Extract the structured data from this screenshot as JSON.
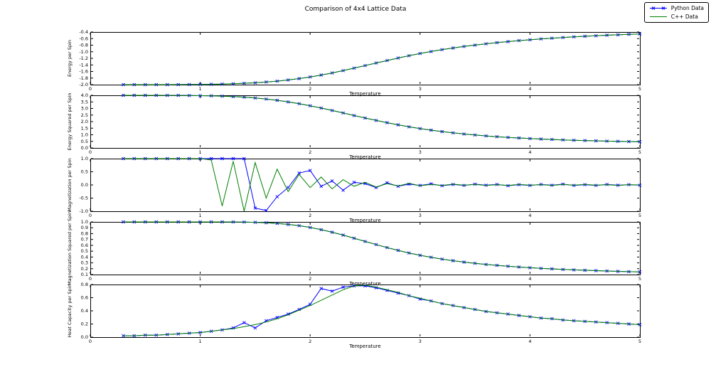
{
  "legend": {
    "position": "top-right",
    "items": [
      {
        "label": "Python Data",
        "color": "#0000ff",
        "marker": "x"
      },
      {
        "label": "C++ Data",
        "color": "#008000",
        "marker": "none"
      }
    ]
  },
  "chart_data": {
    "type": "line",
    "title": "Comparison of 4x4 Lattice Data",
    "xlim": [
      0,
      5
    ],
    "xticks": [
      0,
      1,
      2,
      3,
      4,
      5
    ],
    "xticklabels": [
      "0",
      "1",
      "2",
      "3",
      "4",
      "5"
    ],
    "x": [
      0.3,
      0.4,
      0.5,
      0.6,
      0.7,
      0.8,
      0.9,
      1.0,
      1.1,
      1.2,
      1.3,
      1.4,
      1.5,
      1.6,
      1.7,
      1.8,
      1.9,
      2.0,
      2.1,
      2.2,
      2.3,
      2.4,
      2.5,
      2.6,
      2.7,
      2.8,
      2.9,
      3.0,
      3.1,
      3.2,
      3.3,
      3.4,
      3.5,
      3.6,
      3.7,
      3.8,
      3.9,
      4.0,
      4.1,
      4.2,
      4.3,
      4.4,
      4.5,
      4.6,
      4.7,
      4.8,
      4.9,
      5.0
    ],
    "subplots": [
      {
        "id": "energy",
        "ylabel": "Energy per Spin",
        "xlabel": "Temperature",
        "ylim": [
          -2.0,
          -0.4
        ],
        "yticks": [
          -2.0,
          -1.8,
          -1.6,
          -1.4,
          -1.2,
          -1.0,
          -0.8,
          -0.6,
          -0.4
        ],
        "yticklabels": [
          "-2.0",
          "-1.8",
          "-1.6",
          "-1.4",
          "-1.2",
          "-1.0",
          "-0.8",
          "-0.6",
          "-0.4"
        ],
        "series": [
          {
            "name": "Python Data",
            "color": "#0000ff",
            "marker": "x",
            "values": [
              -2.0,
              -2.0,
              -2.0,
              -1.999,
              -1.999,
              -1.998,
              -1.996,
              -1.993,
              -1.989,
              -1.982,
              -1.973,
              -1.96,
              -1.943,
              -1.921,
              -1.893,
              -1.858,
              -1.816,
              -1.766,
              -1.709,
              -1.645,
              -1.574,
              -1.499,
              -1.421,
              -1.343,
              -1.266,
              -1.191,
              -1.12,
              -1.054,
              -0.993,
              -0.937,
              -0.886,
              -0.839,
              -0.797,
              -0.758,
              -0.723,
              -0.691,
              -0.662,
              -0.635,
              -0.61,
              -0.588,
              -0.567,
              -0.548,
              -0.53,
              -0.514,
              -0.498,
              -0.484,
              -0.471,
              -0.458
            ]
          },
          {
            "name": "C++ Data",
            "color": "#008000",
            "marker": "none",
            "values": [
              -2.0,
              -2.0,
              -2.0,
              -1.999,
              -1.999,
              -1.998,
              -1.996,
              -1.993,
              -1.989,
              -1.982,
              -1.973,
              -1.96,
              -1.943,
              -1.921,
              -1.893,
              -1.858,
              -1.816,
              -1.766,
              -1.709,
              -1.645,
              -1.574,
              -1.499,
              -1.421,
              -1.343,
              -1.266,
              -1.191,
              -1.12,
              -1.054,
              -0.993,
              -0.937,
              -0.886,
              -0.839,
              -0.797,
              -0.758,
              -0.723,
              -0.691,
              -0.662,
              -0.635,
              -0.61,
              -0.588,
              -0.567,
              -0.548,
              -0.53,
              -0.514,
              -0.498,
              -0.484,
              -0.471,
              -0.458
            ]
          }
        ]
      },
      {
        "id": "energy-squared",
        "ylabel": "Energy Squared per Spin",
        "xlabel": "Temperature",
        "ylim": [
          0.0,
          4.0
        ],
        "yticks": [
          0.0,
          0.5,
          1.0,
          1.5,
          2.0,
          2.5,
          3.0,
          3.5,
          4.0
        ],
        "yticklabels": [
          "0.0",
          "0.5",
          "1.0",
          "1.5",
          "2.0",
          "2.5",
          "3.0",
          "3.5",
          "4.0"
        ],
        "series": [
          {
            "name": "Python Data",
            "color": "#0000ff",
            "marker": "x",
            "values": [
              4.0,
              4.0,
              4.0,
              3.998,
              3.996,
              3.992,
              3.985,
              3.975,
              3.96,
              3.936,
              3.903,
              3.857,
              3.795,
              3.716,
              3.619,
              3.5,
              3.362,
              3.205,
              3.033,
              2.849,
              2.657,
              2.464,
              2.274,
              2.091,
              1.917,
              1.755,
              1.607,
              1.472,
              1.35,
              1.241,
              1.144,
              1.058,
              0.982,
              0.915,
              0.855,
              0.802,
              0.755,
              0.713,
              0.676,
              0.643,
              0.613,
              0.586,
              0.562,
              0.54,
              0.52,
              0.502,
              0.486,
              0.471
            ]
          },
          {
            "name": "C++ Data",
            "color": "#008000",
            "marker": "none",
            "values": [
              4.0,
              4.0,
              4.0,
              3.998,
              3.996,
              3.992,
              3.985,
              3.975,
              3.96,
              3.936,
              3.903,
              3.857,
              3.795,
              3.716,
              3.619,
              3.5,
              3.362,
              3.205,
              3.033,
              2.849,
              2.657,
              2.464,
              2.274,
              2.091,
              1.917,
              1.755,
              1.607,
              1.472,
              1.35,
              1.241,
              1.144,
              1.058,
              0.982,
              0.915,
              0.855,
              0.802,
              0.755,
              0.713,
              0.676,
              0.643,
              0.613,
              0.586,
              0.562,
              0.54,
              0.52,
              0.502,
              0.486,
              0.471
            ]
          }
        ]
      },
      {
        "id": "magnetization",
        "ylabel": "Magnetization per Spin",
        "xlabel": "Temperature",
        "ylim": [
          -1.0,
          1.0
        ],
        "yticks": [
          -1.0,
          -0.5,
          0.0,
          0.5,
          1.0
        ],
        "yticklabels": [
          "-1.0",
          "-0.5",
          "0.0",
          "0.5",
          "1.0"
        ],
        "series": [
          {
            "name": "Python Data",
            "color": "#0000ff",
            "marker": "x",
            "values": [
              1.0,
              1.0,
              1.0,
              1.0,
              1.0,
              1.0,
              1.0,
              1.0,
              1.0,
              1.0,
              1.0,
              1.0,
              -0.88,
              -0.97,
              -0.45,
              -0.1,
              0.45,
              0.55,
              -0.05,
              0.15,
              -0.2,
              0.1,
              0.05,
              -0.1,
              0.08,
              -0.05,
              0.03,
              -0.02,
              0.04,
              -0.03,
              0.02,
              -0.02,
              0.03,
              -0.01,
              0.02,
              -0.03,
              0.01,
              -0.02,
              0.02,
              -0.01,
              0.03,
              -0.02,
              0.01,
              -0.02,
              0.02,
              -0.01,
              0.01,
              -0.01
            ]
          },
          {
            "name": "C++ Data",
            "color": "#008000",
            "marker": "none",
            "values": [
              1.0,
              1.0,
              1.0,
              1.0,
              1.0,
              1.0,
              1.0,
              1.0,
              0.95,
              -0.8,
              0.9,
              -1.0,
              0.85,
              -0.5,
              0.6,
              -0.25,
              0.4,
              -0.1,
              0.3,
              -0.15,
              0.2,
              -0.05,
              0.1,
              -0.08,
              0.05,
              -0.04,
              0.06,
              -0.03,
              0.02,
              -0.02,
              0.03,
              -0.01,
              0.02,
              -0.02,
              0.01,
              -0.02,
              0.02,
              -0.01,
              0.01,
              -0.02,
              0.02,
              -0.01,
              0.02,
              -0.01,
              0.01,
              -0.02,
              0.01,
              0.0
            ]
          }
        ]
      },
      {
        "id": "magnetization-squared",
        "ylabel": "Magnetization Squared per Spin",
        "xlabel": "Temperature",
        "ylim": [
          0.1,
          1.0
        ],
        "yticks": [
          0.1,
          0.2,
          0.3,
          0.4,
          0.5,
          0.6,
          0.7,
          0.8,
          0.9,
          1.0
        ],
        "yticklabels": [
          "0.1",
          "0.2",
          "0.3",
          "0.4",
          "0.5",
          "0.6",
          "0.7",
          "0.8",
          "0.9",
          "1.0"
        ],
        "series": [
          {
            "name": "Python Data",
            "color": "#0000ff",
            "marker": "x",
            "values": [
              1.0,
              1.0,
              1.0,
              1.0,
              1.0,
              1.0,
              1.0,
              1.0,
              1.0,
              1.0,
              0.999,
              0.997,
              0.993,
              0.986,
              0.975,
              0.958,
              0.935,
              0.905,
              0.868,
              0.824,
              0.775,
              0.722,
              0.667,
              0.613,
              0.561,
              0.513,
              0.469,
              0.43,
              0.395,
              0.364,
              0.337,
              0.313,
              0.292,
              0.273,
              0.257,
              0.242,
              0.229,
              0.217,
              0.206,
              0.197,
              0.188,
              0.18,
              0.173,
              0.167,
              0.161,
              0.155,
              0.15,
              0.146
            ]
          },
          {
            "name": "C++ Data",
            "color": "#008000",
            "marker": "none",
            "values": [
              1.0,
              1.0,
              1.0,
              1.0,
              1.0,
              1.0,
              1.0,
              1.0,
              1.0,
              1.0,
              0.999,
              0.997,
              0.993,
              0.986,
              0.975,
              0.958,
              0.935,
              0.905,
              0.868,
              0.824,
              0.775,
              0.722,
              0.667,
              0.613,
              0.561,
              0.513,
              0.469,
              0.43,
              0.395,
              0.364,
              0.337,
              0.313,
              0.292,
              0.273,
              0.257,
              0.242,
              0.229,
              0.217,
              0.206,
              0.197,
              0.188,
              0.18,
              0.173,
              0.167,
              0.161,
              0.155,
              0.15,
              0.146
            ]
          }
        ]
      },
      {
        "id": "heat-capacity",
        "ylabel": "Heat Capacity per Spin",
        "xlabel": "Temperature",
        "ylim": [
          0.0,
          0.8
        ],
        "yticks": [
          0.0,
          0.2,
          0.4,
          0.6,
          0.8
        ],
        "yticklabels": [
          "0.0",
          "0.2",
          "0.4",
          "0.6",
          "0.8"
        ],
        "series": [
          {
            "name": "Python Data",
            "color": "#0000ff",
            "marker": "x",
            "values": [
              0.02,
              0.02,
              0.03,
              0.03,
              0.04,
              0.05,
              0.06,
              0.07,
              0.09,
              0.11,
              0.14,
              0.22,
              0.14,
              0.25,
              0.3,
              0.35,
              0.42,
              0.5,
              0.74,
              0.7,
              0.76,
              0.78,
              0.78,
              0.75,
              0.71,
              0.67,
              0.63,
              0.58,
              0.55,
              0.51,
              0.48,
              0.45,
              0.42,
              0.39,
              0.37,
              0.35,
              0.33,
              0.31,
              0.29,
              0.28,
              0.26,
              0.25,
              0.24,
              0.23,
              0.22,
              0.21,
              0.2,
              0.19
            ]
          },
          {
            "name": "C++ Data",
            "color": "#008000",
            "marker": "none",
            "values": [
              0.02,
              0.02,
              0.03,
              0.03,
              0.04,
              0.05,
              0.06,
              0.07,
              0.09,
              0.11,
              0.13,
              0.16,
              0.19,
              0.23,
              0.28,
              0.34,
              0.41,
              0.48,
              0.56,
              0.64,
              0.72,
              0.78,
              0.79,
              0.76,
              0.72,
              0.68,
              0.63,
              0.59,
              0.55,
              0.51,
              0.48,
              0.45,
              0.42,
              0.39,
              0.37,
              0.35,
              0.33,
              0.31,
              0.29,
              0.28,
              0.26,
              0.25,
              0.24,
              0.23,
              0.22,
              0.21,
              0.2,
              0.19
            ]
          }
        ]
      }
    ]
  }
}
